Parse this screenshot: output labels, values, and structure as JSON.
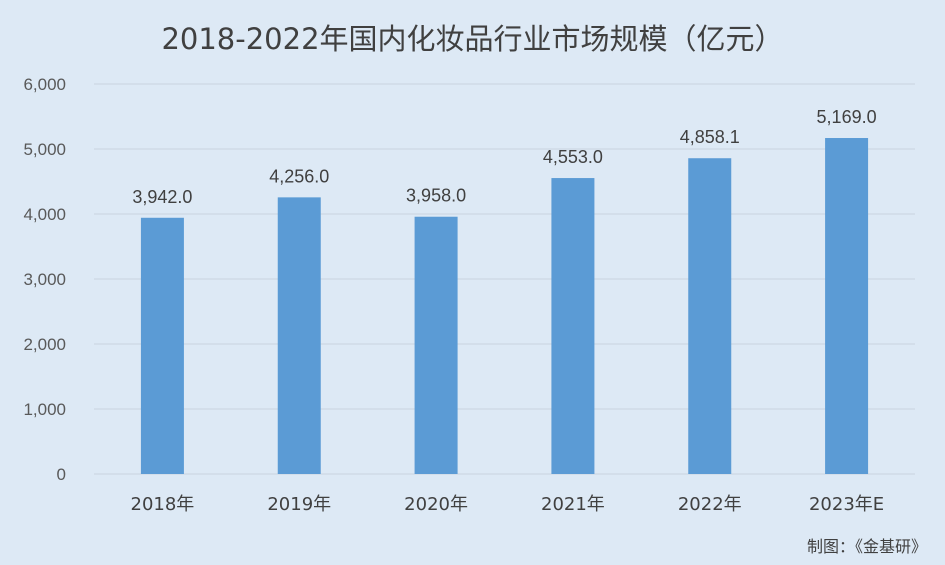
{
  "chart_data": {
    "type": "bar",
    "title": "2018-2022年国内化妆品行业市场规模（亿元）",
    "categories": [
      "2018年",
      "2019年",
      "2020年",
      "2021年",
      "2022年",
      "2023年E"
    ],
    "values": [
      3942.0,
      4256.0,
      3958.0,
      4553.0,
      4858.1,
      5169.0
    ],
    "data_labels": [
      "3,942.0",
      "4,256.0",
      "3,958.0",
      "4,553.0",
      "4,858.1",
      "5,169.0"
    ],
    "y_ticks": [
      "0",
      "1,000",
      "2,000",
      "3,000",
      "4,000",
      "5,000",
      "6,000"
    ],
    "ylim": [
      0,
      6000
    ],
    "grid": true,
    "bar_color": "#5b9bd5",
    "background_color": "#dde9f5"
  },
  "source_note": "制图：《金基研》"
}
